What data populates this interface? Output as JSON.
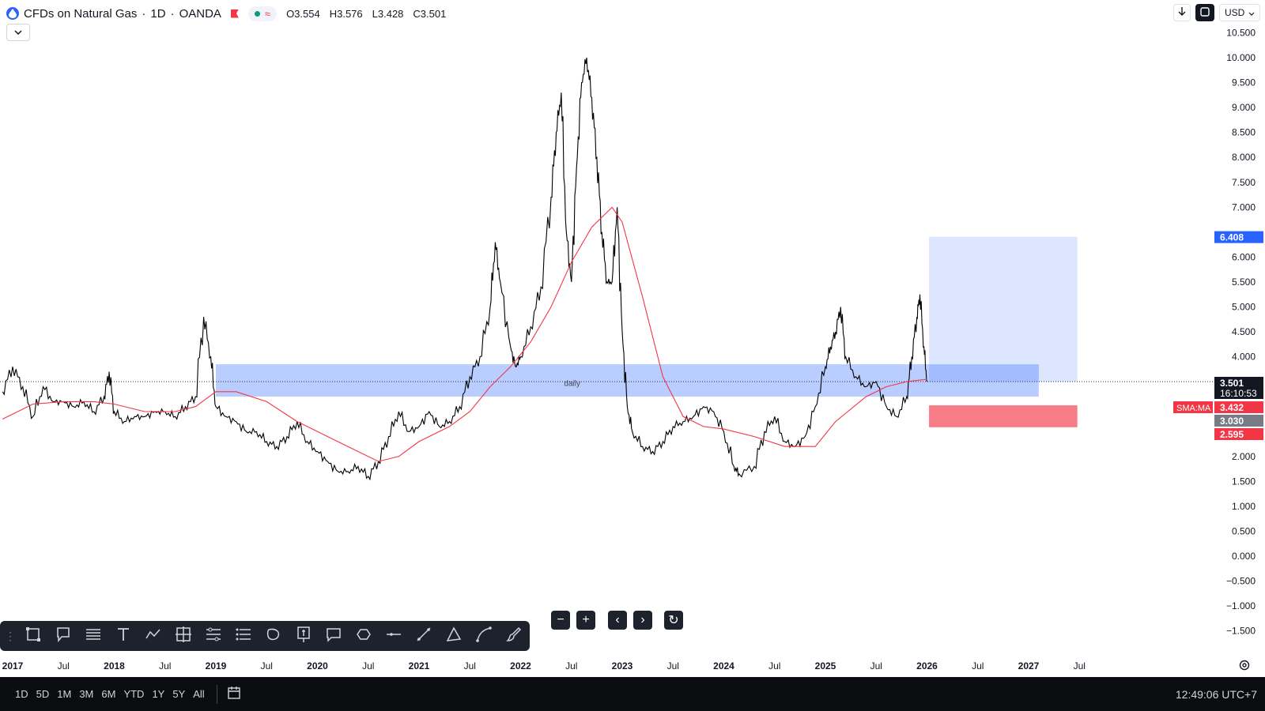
{
  "header": {
    "symbol": "CFDs on Natural Gas",
    "interval": "1D",
    "exchange": "OANDA",
    "sep": "·",
    "status_icon": "≈",
    "ohlc": {
      "open": "O3.554",
      "high": "H3.576",
      "low": "L3.428",
      "close": "C3.501"
    }
  },
  "top_right": {
    "currency": "USD"
  },
  "chart_data": {
    "type": "line",
    "title": "",
    "price_axis": {
      "min": -1.7,
      "max": 10.8,
      "ticks": [
        -1.5,
        -1.0,
        -0.5,
        0.0,
        0.5,
        1.0,
        1.5,
        2.0,
        2.5,
        3.0,
        3.5,
        4.0,
        4.5,
        5.0,
        5.5,
        6.0,
        7.0,
        7.5,
        8.0,
        8.5,
        9.0,
        9.5,
        10.0,
        10.5
      ],
      "tick_labels": [
        "−1.500",
        "−1.000",
        "−0.500",
        "0.000",
        "0.500",
        "1.000",
        "1.500",
        "2.000",
        "2.500",
        "3.000",
        "3.500",
        "4.000",
        "4.500",
        "5.000",
        "5.500",
        "6.000",
        "7.000",
        "7.500",
        "8.000",
        "8.500",
        "9.000",
        "9.500",
        "10.000",
        "10.500"
      ]
    },
    "time_axis": {
      "min": 2016.9,
      "max": 2028.7,
      "ticks": [
        {
          "t": 2017.0,
          "label": "2017",
          "bold": true
        },
        {
          "t": 2017.5,
          "label": "Jul",
          "bold": false
        },
        {
          "t": 2018.0,
          "label": "2018",
          "bold": true
        },
        {
          "t": 2018.5,
          "label": "Jul",
          "bold": false
        },
        {
          "t": 2019.0,
          "label": "2019",
          "bold": true
        },
        {
          "t": 2019.5,
          "label": "Jul",
          "bold": false
        },
        {
          "t": 2020.0,
          "label": "2020",
          "bold": true
        },
        {
          "t": 2020.5,
          "label": "Jul",
          "bold": false
        },
        {
          "t": 2021.0,
          "label": "2021",
          "bold": true
        },
        {
          "t": 2021.5,
          "label": "Jul",
          "bold": false
        },
        {
          "t": 2022.0,
          "label": "2022",
          "bold": true
        },
        {
          "t": 2022.5,
          "label": "Jul",
          "bold": false
        },
        {
          "t": 2023.0,
          "label": "2023",
          "bold": true
        },
        {
          "t": 2023.5,
          "label": "Jul",
          "bold": false
        },
        {
          "t": 2024.0,
          "label": "2024",
          "bold": true
        },
        {
          "t": 2024.5,
          "label": "Jul",
          "bold": false
        },
        {
          "t": 2025.0,
          "label": "2025",
          "bold": true
        },
        {
          "t": 2025.5,
          "label": "Jul",
          "bold": false
        },
        {
          "t": 2026.0,
          "label": "2026",
          "bold": true
        },
        {
          "t": 2026.5,
          "label": "Jul",
          "bold": false
        },
        {
          "t": 2027.0,
          "label": "2027",
          "bold": true
        },
        {
          "t": 2027.5,
          "label": "Jul",
          "bold": false
        }
      ]
    },
    "series": [
      {
        "name": "",
        "color": "#000000",
        "kind": "price",
        "points": [
          [
            2016.9,
            3.3
          ],
          [
            2017.0,
            3.8
          ],
          [
            2017.1,
            3.4
          ],
          [
            2017.2,
            2.8
          ],
          [
            2017.3,
            3.4
          ],
          [
            2017.4,
            3.1
          ],
          [
            2017.5,
            3.1
          ],
          [
            2017.6,
            3.0
          ],
          [
            2017.7,
            3.1
          ],
          [
            2017.8,
            2.9
          ],
          [
            2017.9,
            3.2
          ],
          [
            2017.95,
            3.7
          ],
          [
            2018.0,
            2.9
          ],
          [
            2018.1,
            2.7
          ],
          [
            2018.2,
            2.8
          ],
          [
            2018.3,
            2.8
          ],
          [
            2018.4,
            2.9
          ],
          [
            2018.5,
            2.9
          ],
          [
            2018.6,
            2.8
          ],
          [
            2018.7,
            3.0
          ],
          [
            2018.8,
            3.2
          ],
          [
            2018.88,
            4.8
          ],
          [
            2018.95,
            4.0
          ],
          [
            2019.0,
            3.0
          ],
          [
            2019.1,
            2.8
          ],
          [
            2019.2,
            2.7
          ],
          [
            2019.3,
            2.5
          ],
          [
            2019.4,
            2.5
          ],
          [
            2019.5,
            2.3
          ],
          [
            2019.6,
            2.2
          ],
          [
            2019.7,
            2.4
          ],
          [
            2019.8,
            2.7
          ],
          [
            2019.9,
            2.3
          ],
          [
            2020.0,
            2.1
          ],
          [
            2020.1,
            1.9
          ],
          [
            2020.2,
            1.7
          ],
          [
            2020.3,
            1.7
          ],
          [
            2020.4,
            1.8
          ],
          [
            2020.5,
            1.6
          ],
          [
            2020.6,
            1.9
          ],
          [
            2020.7,
            2.4
          ],
          [
            2020.8,
            2.9
          ],
          [
            2020.9,
            2.5
          ],
          [
            2021.0,
            2.6
          ],
          [
            2021.1,
            2.9
          ],
          [
            2021.2,
            2.6
          ],
          [
            2021.3,
            2.7
          ],
          [
            2021.4,
            3.0
          ],
          [
            2021.5,
            3.6
          ],
          [
            2021.6,
            4.0
          ],
          [
            2021.7,
            5.0
          ],
          [
            2021.75,
            6.3
          ],
          [
            2021.8,
            5.5
          ],
          [
            2021.9,
            4.2
          ],
          [
            2021.95,
            3.8
          ],
          [
            2022.0,
            4.0
          ],
          [
            2022.1,
            4.6
          ],
          [
            2022.2,
            5.4
          ],
          [
            2022.3,
            7.2
          ],
          [
            2022.35,
            8.5
          ],
          [
            2022.4,
            9.3
          ],
          [
            2022.45,
            6.5
          ],
          [
            2022.5,
            5.5
          ],
          [
            2022.55,
            7.8
          ],
          [
            2022.6,
            9.5
          ],
          [
            2022.65,
            10.0
          ],
          [
            2022.7,
            9.2
          ],
          [
            2022.75,
            8.0
          ],
          [
            2022.8,
            6.5
          ],
          [
            2022.85,
            5.5
          ],
          [
            2022.9,
            5.5
          ],
          [
            2022.95,
            7.0
          ],
          [
            2023.0,
            4.5
          ],
          [
            2023.05,
            3.0
          ],
          [
            2023.1,
            2.5
          ],
          [
            2023.2,
            2.2
          ],
          [
            2023.3,
            2.1
          ],
          [
            2023.4,
            2.3
          ],
          [
            2023.5,
            2.6
          ],
          [
            2023.6,
            2.7
          ],
          [
            2023.7,
            2.8
          ],
          [
            2023.8,
            3.0
          ],
          [
            2023.9,
            2.9
          ],
          [
            2024.0,
            2.5
          ],
          [
            2024.1,
            1.8
          ],
          [
            2024.15,
            1.65
          ],
          [
            2024.3,
            1.8
          ],
          [
            2024.4,
            2.5
          ],
          [
            2024.5,
            2.8
          ],
          [
            2024.6,
            2.3
          ],
          [
            2024.7,
            2.2
          ],
          [
            2024.8,
            2.4
          ],
          [
            2024.9,
            3.0
          ],
          [
            2025.0,
            3.8
          ],
          [
            2025.05,
            4.2
          ],
          [
            2025.1,
            4.5
          ],
          [
            2025.15,
            5.0
          ],
          [
            2025.2,
            4.0
          ],
          [
            2025.3,
            3.6
          ],
          [
            2025.4,
            3.4
          ],
          [
            2025.5,
            3.5
          ],
          [
            2025.6,
            3.0
          ],
          [
            2025.7,
            2.8
          ],
          [
            2025.8,
            3.2
          ],
          [
            2025.85,
            4.0
          ],
          [
            2025.9,
            4.8
          ],
          [
            2025.93,
            5.25
          ],
          [
            2025.97,
            4.2
          ],
          [
            2026.0,
            3.5
          ]
        ]
      },
      {
        "name": "SMA:MA",
        "color": "#f23645",
        "kind": "ma",
        "points": [
          [
            2016.9,
            2.75
          ],
          [
            2017.2,
            3.05
          ],
          [
            2017.5,
            3.1
          ],
          [
            2017.8,
            3.1
          ],
          [
            2018.0,
            3.05
          ],
          [
            2018.3,
            2.9
          ],
          [
            2018.6,
            2.9
          ],
          [
            2018.8,
            3.0
          ],
          [
            2019.0,
            3.3
          ],
          [
            2019.2,
            3.3
          ],
          [
            2019.5,
            3.1
          ],
          [
            2019.8,
            2.7
          ],
          [
            2020.0,
            2.5
          ],
          [
            2020.3,
            2.2
          ],
          [
            2020.6,
            1.9
          ],
          [
            2020.8,
            2.0
          ],
          [
            2021.0,
            2.3
          ],
          [
            2021.3,
            2.6
          ],
          [
            2021.5,
            2.9
          ],
          [
            2021.7,
            3.4
          ],
          [
            2021.9,
            3.8
          ],
          [
            2022.1,
            4.3
          ],
          [
            2022.3,
            5.0
          ],
          [
            2022.5,
            5.9
          ],
          [
            2022.7,
            6.6
          ],
          [
            2022.9,
            7.0
          ],
          [
            2023.0,
            6.7
          ],
          [
            2023.2,
            5.2
          ],
          [
            2023.4,
            3.6
          ],
          [
            2023.6,
            2.8
          ],
          [
            2023.8,
            2.6
          ],
          [
            2024.0,
            2.55
          ],
          [
            2024.3,
            2.4
          ],
          [
            2024.6,
            2.2
          ],
          [
            2024.9,
            2.2
          ],
          [
            2025.1,
            2.7
          ],
          [
            2025.4,
            3.2
          ],
          [
            2025.6,
            3.4
          ],
          [
            2025.8,
            3.5
          ],
          [
            2026.0,
            3.55
          ]
        ]
      }
    ],
    "annotations": {
      "zone": {
        "label": "daily",
        "t_start": 2019.0,
        "t_end": 2027.1,
        "price_low": 3.2,
        "price_high": 3.85,
        "color": "#2962ff"
      },
      "long_position": {
        "t_start": 2026.02,
        "t_end": 2027.48,
        "entry": 3.501,
        "target": 6.408,
        "stop": 3.03
      },
      "last_price_line": 3.501
    },
    "price_labels": [
      {
        "value": 6.408,
        "text": "6.408",
        "bg": "#2962ff",
        "fg": "#ffffff"
      },
      {
        "value": 3.501,
        "text": "3.501",
        "sub": "16:10:53",
        "bg": "#131722",
        "fg": "#ffffff"
      },
      {
        "value": 3.432,
        "text": "3.432",
        "tag": "SMA:MA",
        "bg": "#f23645",
        "fg": "#ffffff"
      },
      {
        "value": 3.03,
        "text": "3.030",
        "bg": "#787b86",
        "fg": "#ffffff"
      },
      {
        "value": 2.595,
        "text": "2.595",
        "bg": "#f23645",
        "fg": "#ffffff"
      }
    ]
  },
  "toolbar": {
    "tools": [
      "rectangle-icon",
      "callout-icon",
      "lines-icon",
      "text-icon",
      "path-icon",
      "crosshair-icon",
      "fib-icon",
      "channel-icon",
      "ellipse-icon",
      "price-label-icon",
      "comment-icon",
      "shape-icon",
      "horizontal-line-icon",
      "trend-line-icon",
      "triangle-icon",
      "curve-icon",
      "brush-icon"
    ]
  },
  "navigation": {
    "zoom_out": "−",
    "zoom_in": "+",
    "scroll_left": "‹",
    "scroll_right": "›",
    "reset": "↻"
  },
  "bottom_bar": {
    "ranges": [
      "1D",
      "5D",
      "1M",
      "3M",
      "6M",
      "YTD",
      "1Y",
      "5Y",
      "All"
    ],
    "clock": "12:49:06 UTC+7"
  }
}
